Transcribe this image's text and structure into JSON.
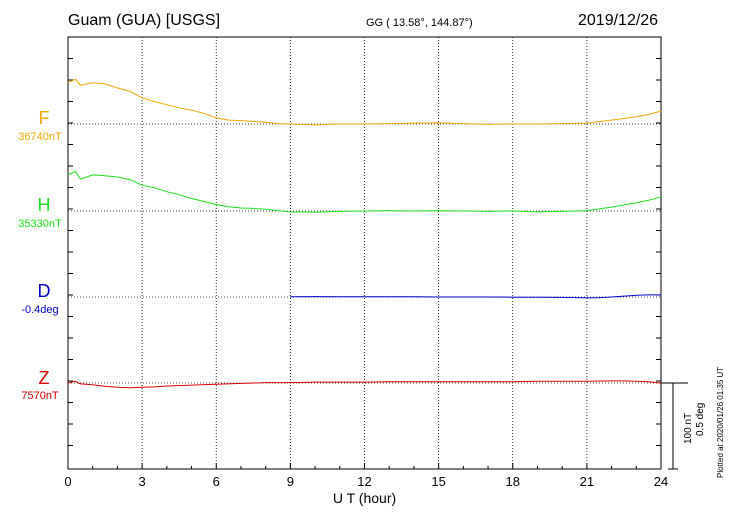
{
  "header": {
    "station": "Guam (GUA)  [USGS]",
    "coords": "GG ( 13.58°, 144.87°)",
    "date": "2019/12/26"
  },
  "components": [
    {
      "letter": "F",
      "base": "36740nT",
      "color": "#f0a800"
    },
    {
      "letter": "H",
      "base": "35330nT",
      "color": "#1ee01e"
    },
    {
      "letter": "D",
      "base": "-0.4deg",
      "color": "#0000c8"
    },
    {
      "letter": "Z",
      "base": "7570nT",
      "color": "#d80000"
    }
  ],
  "scale": {
    "nt": "100 nT",
    "deg": "0.5 deg"
  },
  "plotted_at": "Plotted at 2020/01/26 01:35 UT",
  "chart_data": {
    "type": "line",
    "xlabel": "U T (hour)",
    "xlim": [
      0,
      24
    ],
    "xticks": [
      "0",
      "3",
      "6",
      "9",
      "12",
      "15",
      "18",
      "21",
      "24"
    ],
    "grid": true,
    "scale_per_division": {
      "F": 100,
      "H": 100,
      "D": 0.5,
      "Z": 100
    },
    "series": [
      {
        "name": "F",
        "unit": "nT",
        "baseline": 36740,
        "x": [
          0,
          0.3,
          0.5,
          1,
          1.5,
          2,
          2.5,
          3,
          3.5,
          4,
          4.5,
          5,
          5.5,
          6,
          6.5,
          7,
          7.5,
          8,
          8.5,
          9,
          10,
          11,
          12,
          13,
          14,
          15,
          16,
          17,
          18,
          19,
          20,
          21,
          22,
          23,
          23.5,
          24
        ],
        "values": [
          96,
          104,
          90,
          96,
          93,
          84,
          76,
          61,
          52,
          45,
          38,
          32,
          25,
          14,
          9,
          8,
          6,
          4,
          1,
          0,
          -2,
          0,
          0,
          1,
          2,
          3,
          1,
          -1,
          0,
          0,
          1,
          2,
          9,
          17,
          22,
          30
        ]
      },
      {
        "name": "H",
        "unit": "nT",
        "baseline": 35330,
        "x": [
          0,
          0.3,
          0.5,
          1,
          1.5,
          2,
          2.5,
          3,
          3.5,
          4,
          4.5,
          5,
          5.5,
          6,
          6.5,
          7,
          7.5,
          8,
          8.5,
          9,
          10,
          11,
          12,
          13,
          14,
          15,
          16,
          17,
          18,
          19,
          20,
          21,
          22,
          23,
          23.5,
          24
        ],
        "values": [
          84,
          92,
          74,
          84,
          82,
          79,
          73,
          60,
          54,
          45,
          38,
          29,
          22,
          15,
          10,
          7,
          6,
          4,
          1,
          -2,
          -3,
          -1,
          0,
          1,
          0,
          1,
          0,
          -1,
          0,
          -2,
          -1,
          1,
          9,
          19,
          25,
          33
        ]
      },
      {
        "name": "D",
        "unit": "deg",
        "baseline": -0.4,
        "x": [
          9,
          10,
          11,
          12,
          13,
          14,
          15,
          16,
          17,
          18,
          19,
          20,
          21,
          21.5,
          22,
          22.5,
          23,
          23.5,
          24
        ],
        "values": [
          0.003,
          0.005,
          0.003,
          0.003,
          0.003,
          0.003,
          0.0,
          0.0,
          0.0,
          -0.002,
          -0.002,
          -0.005,
          -0.01,
          -0.008,
          0.0,
          0.01,
          0.02,
          0.025,
          0.025
        ]
      },
      {
        "name": "Z",
        "unit": "nT",
        "baseline": 7570,
        "x": [
          0,
          0.3,
          0.5,
          1,
          1.5,
          2,
          2.5,
          3,
          3.5,
          4,
          5,
          6,
          7,
          8,
          9,
          10,
          11,
          12,
          13,
          14,
          15,
          16,
          17,
          18,
          19,
          20,
          21,
          22,
          22.5,
          23,
          23.5,
          24
        ],
        "values": [
          0,
          4,
          -2,
          -4,
          -8,
          -10,
          -11,
          -10,
          -9,
          -7,
          -5,
          -3,
          -1,
          1,
          1,
          2,
          2,
          2,
          3,
          3,
          3,
          3,
          3,
          3,
          4,
          4,
          4,
          5,
          5,
          4,
          3,
          0
        ]
      }
    ]
  }
}
